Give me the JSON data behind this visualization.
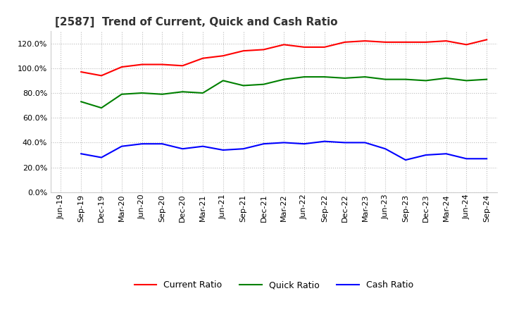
{
  "title": "[2587]  Trend of Current, Quick and Cash Ratio",
  "title_fontsize": 11,
  "background_color": "#ffffff",
  "grid_color": "#bbbbbb",
  "ylim": [
    0.0,
    1.3
  ],
  "yticks": [
    0.0,
    0.2,
    0.4,
    0.6,
    0.8,
    1.0,
    1.2
  ],
  "x_labels": [
    "Jun-19",
    "Sep-19",
    "Dec-19",
    "Mar-20",
    "Jun-20",
    "Sep-20",
    "Dec-20",
    "Mar-21",
    "Jun-21",
    "Sep-21",
    "Dec-21",
    "Mar-22",
    "Jun-22",
    "Sep-22",
    "Dec-22",
    "Mar-23",
    "Jun-23",
    "Sep-23",
    "Dec-23",
    "Mar-24",
    "Jun-24",
    "Sep-24"
  ],
  "current_ratio": [
    null,
    0.97,
    0.94,
    1.01,
    1.03,
    1.03,
    1.02,
    1.08,
    1.1,
    1.14,
    1.15,
    1.19,
    1.17,
    1.17,
    1.21,
    1.22,
    1.21,
    1.21,
    1.21,
    1.22,
    1.19,
    1.23
  ],
  "quick_ratio": [
    null,
    0.73,
    0.68,
    0.79,
    0.8,
    0.79,
    0.81,
    0.8,
    0.9,
    0.86,
    0.87,
    0.91,
    0.93,
    0.93,
    0.92,
    0.93,
    0.91,
    0.91,
    0.9,
    0.92,
    0.9,
    0.91
  ],
  "cash_ratio": [
    null,
    0.31,
    0.28,
    0.37,
    0.39,
    0.39,
    0.35,
    0.37,
    0.34,
    0.35,
    0.39,
    0.4,
    0.39,
    0.41,
    0.4,
    0.4,
    0.35,
    0.26,
    0.3,
    0.31,
    0.27,
    0.27
  ],
  "current_color": "#ff0000",
  "quick_color": "#008000",
  "cash_color": "#0000ff",
  "line_width": 1.5,
  "legend_labels": [
    "Current Ratio",
    "Quick Ratio",
    "Cash Ratio"
  ],
  "legend_fontsize": 9,
  "tick_fontsize": 8,
  "ytick_fontsize": 8
}
